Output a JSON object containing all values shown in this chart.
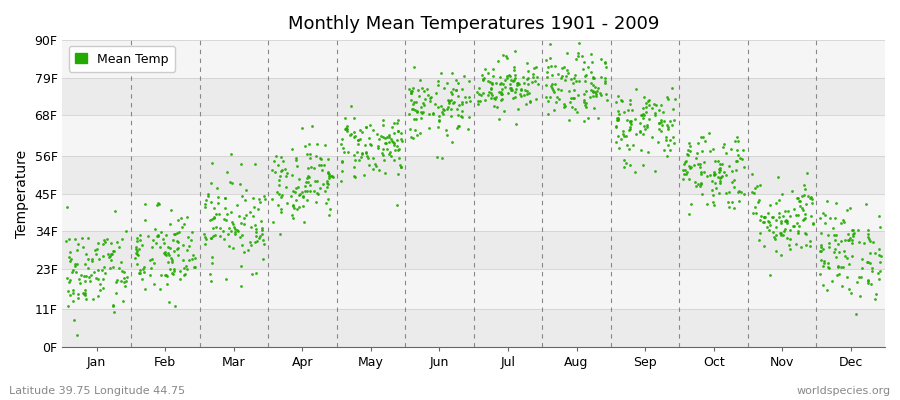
{
  "title": "Monthly Mean Temperatures 1901 - 2009",
  "ylabel": "Temperature",
  "bottom_left_text": "Latitude 39.75 Longitude 44.75",
  "bottom_right_text": "worldspecies.org",
  "legend_label": "Mean Temp",
  "dot_color": "#22AA00",
  "bg_color": "#FFFFFF",
  "plot_bg_color": "#FFFFFF",
  "band_color_light": "#F0F0F0",
  "band_color_dark": "#E4E4E4",
  "ytick_labels": [
    "0F",
    "11F",
    "23F",
    "34F",
    "45F",
    "56F",
    "68F",
    "79F",
    "90F"
  ],
  "ytick_values": [
    0,
    11,
    23,
    34,
    45,
    56,
    68,
    79,
    90
  ],
  "months": [
    "Jan",
    "Feb",
    "Mar",
    "Apr",
    "May",
    "Jun",
    "Jul",
    "Aug",
    "Sep",
    "Oct",
    "Nov",
    "Dec"
  ],
  "month_centers": [
    0.5,
    1.5,
    2.5,
    3.5,
    4.5,
    5.5,
    6.5,
    7.5,
    8.5,
    9.5,
    10.5,
    11.5
  ],
  "month_boundaries": [
    0,
    1,
    2,
    3,
    4,
    5,
    6,
    7,
    8,
    9,
    10,
    11,
    12
  ],
  "mean_temps_F": {
    "Jan": 22,
    "Feb": 27,
    "Mar": 37,
    "Apr": 49,
    "May": 59,
    "Jun": 70,
    "Jul": 77,
    "Aug": 76,
    "Sep": 65,
    "Oct": 52,
    "Nov": 38,
    "Dec": 28
  },
  "spread_F": {
    "Jan": 7,
    "Feb": 7,
    "Mar": 7,
    "Apr": 6,
    "May": 5,
    "Jun": 5,
    "Jul": 4,
    "Aug": 5,
    "Sep": 6,
    "Oct": 6,
    "Nov": 6,
    "Dec": 7
  },
  "n_points": 109,
  "xlim": [
    0,
    12
  ],
  "ylim": [
    0,
    90
  ]
}
